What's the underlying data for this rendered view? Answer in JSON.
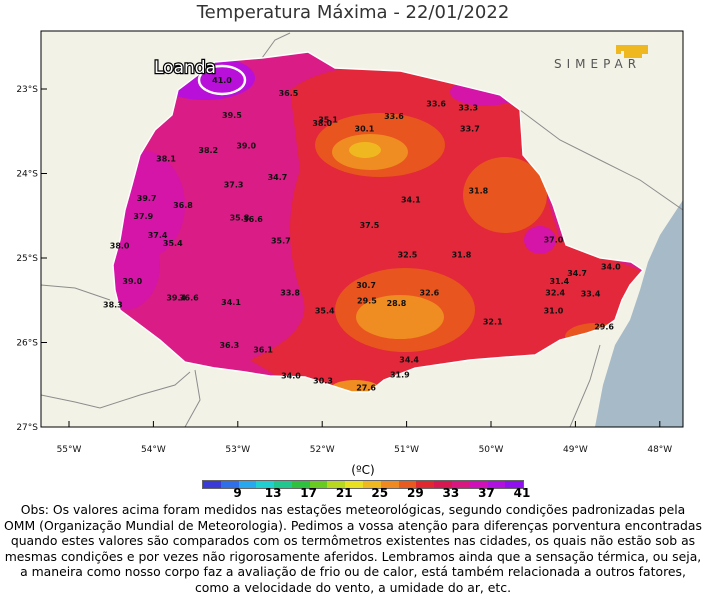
{
  "title": "Temperatura Máxima - 22/01/2022",
  "brand": "SIMEPAR",
  "highlight": {
    "city": "Loanda",
    "value": "41.0"
  },
  "lat_labels": [
    "23°S",
    "24°S",
    "25°S",
    "26°S",
    "27°S"
  ],
  "lon_labels": [
    "55°W",
    "54°W",
    "53°W",
    "52°W",
    "51°W",
    "50°W",
    "49°W",
    "48°W"
  ],
  "stations": [
    {
      "v": "36.5",
      "lon": -52.4,
      "lat": -23.05
    },
    {
      "v": "39.5",
      "lon": -53.07,
      "lat": -23.31
    },
    {
      "v": "38.0",
      "lon": -52.0,
      "lat": -23.4
    },
    {
      "v": "35.1",
      "lon": -51.93,
      "lat": -23.36
    },
    {
      "v": "30.1",
      "lon": -51.5,
      "lat": -23.47
    },
    {
      "v": "33.6",
      "lon": -51.15,
      "lat": -23.32
    },
    {
      "v": "33.6",
      "lon": -50.65,
      "lat": -23.17
    },
    {
      "v": "33.3",
      "lon": -50.27,
      "lat": -23.22
    },
    {
      "v": "33.7",
      "lon": -50.25,
      "lat": -23.47
    },
    {
      "v": "38.1",
      "lon": -53.85,
      "lat": -23.82
    },
    {
      "v": "38.2",
      "lon": -53.35,
      "lat": -23.72
    },
    {
      "v": "39.0",
      "lon": -52.9,
      "lat": -23.67
    },
    {
      "v": "37.3",
      "lon": -53.05,
      "lat": -24.13
    },
    {
      "v": "34.7",
      "lon": -52.53,
      "lat": -24.04
    },
    {
      "v": "31.8",
      "lon": -50.15,
      "lat": -24.2
    },
    {
      "v": "34.1",
      "lon": -50.95,
      "lat": -24.31
    },
    {
      "v": "39.7",
      "lon": -54.08,
      "lat": -24.29
    },
    {
      "v": "36.8",
      "lon": -53.65,
      "lat": -24.37
    },
    {
      "v": "37.9",
      "lon": -54.12,
      "lat": -24.5
    },
    {
      "v": "35.8",
      "lon": -52.98,
      "lat": -24.52
    },
    {
      "v": "36.6",
      "lon": -52.82,
      "lat": -24.54
    },
    {
      "v": "37.5",
      "lon": -51.44,
      "lat": -24.61
    },
    {
      "v": "37.4",
      "lon": -53.95,
      "lat": -24.73
    },
    {
      "v": "35.4",
      "lon": -53.77,
      "lat": -24.82
    },
    {
      "v": "35.7",
      "lon": -52.49,
      "lat": -24.79
    },
    {
      "v": "37.0",
      "lon": -49.26,
      "lat": -24.78
    },
    {
      "v": "38.0",
      "lon": -54.4,
      "lat": -24.85
    },
    {
      "v": "32.5",
      "lon": -50.99,
      "lat": -24.96
    },
    {
      "v": "31.8",
      "lon": -50.35,
      "lat": -24.96
    },
    {
      "v": "34.0",
      "lon": -48.58,
      "lat": -25.1
    },
    {
      "v": "34.7",
      "lon": -48.98,
      "lat": -25.18
    },
    {
      "v": "39.0",
      "lon": -54.25,
      "lat": -25.27
    },
    {
      "v": "31.4",
      "lon": -49.19,
      "lat": -25.27
    },
    {
      "v": "30.7",
      "lon": -51.48,
      "lat": -25.32
    },
    {
      "v": "32.4",
      "lon": -49.24,
      "lat": -25.41
    },
    {
      "v": "33.4",
      "lon": -48.82,
      "lat": -25.42
    },
    {
      "v": "32.6",
      "lon": -50.73,
      "lat": -25.41
    },
    {
      "v": "33.8",
      "lon": -52.38,
      "lat": -25.41
    },
    {
      "v": "39.4",
      "lon": -53.73,
      "lat": -25.47
    },
    {
      "v": "36.6",
      "lon": -53.58,
      "lat": -25.47
    },
    {
      "v": "34.1",
      "lon": -53.08,
      "lat": -25.52
    },
    {
      "v": "29.5",
      "lon": -51.47,
      "lat": -25.5
    },
    {
      "v": "28.8",
      "lon": -51.12,
      "lat": -25.53
    },
    {
      "v": "38.3",
      "lon": -54.48,
      "lat": -25.55
    },
    {
      "v": "35.4",
      "lon": -51.97,
      "lat": -25.62
    },
    {
      "v": "31.0",
      "lon": -49.26,
      "lat": -25.62
    },
    {
      "v": "32.1",
      "lon": -49.98,
      "lat": -25.75
    },
    {
      "v": "29.6",
      "lon": -48.66,
      "lat": -25.81
    },
    {
      "v": "36.3",
      "lon": -53.1,
      "lat": -26.03
    },
    {
      "v": "36.1",
      "lon": -52.7,
      "lat": -26.08
    },
    {
      "v": "34.4",
      "lon": -50.97,
      "lat": -26.2
    },
    {
      "v": "31.9",
      "lon": -51.08,
      "lat": -26.38
    },
    {
      "v": "34.0",
      "lon": -52.37,
      "lat": -26.39
    },
    {
      "v": "30.3",
      "lon": -51.99,
      "lat": -26.45
    },
    {
      "v": "27.6",
      "lon": -51.48,
      "lat": -26.53
    }
  ],
  "colorbar": {
    "unit": "(ºC)",
    "ticks": [
      "9",
      "13",
      "17",
      "21",
      "25",
      "29",
      "33",
      "37",
      "41"
    ],
    "colors": [
      "#3a3ad6",
      "#2f6fe8",
      "#28a8ee",
      "#20d0d0",
      "#20c890",
      "#30c040",
      "#68cc20",
      "#b8d820",
      "#e8e020",
      "#f0b820",
      "#f08a20",
      "#e85a20",
      "#e02830",
      "#d81850",
      "#d81880",
      "#d010b8",
      "#b010e0",
      "#9010f0"
    ]
  },
  "note": "Obs: Os valores acima foram medidos nas estações meteorológicas, segundo condições padronizadas pela OMM (Organização Mundial de Meteorologia). Pedimos a vossa atenção para diferenças porventura encontradas quando estes valores são comparados com os termômetros existentes nas cidades, os quais não estão sob as mesmas condições e por vezes não rigorosamente aferidos. Lembramos ainda que a sensação térmica, ou seja, a maneira como nosso corpo faz a avaliação de frio ou de calor, está também relacionada a outros fatores, como a velocidade do vento, a umidade do ar, etc."
}
